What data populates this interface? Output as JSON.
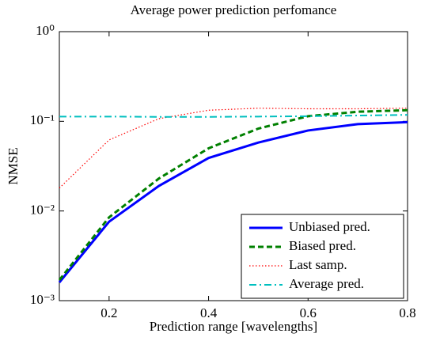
{
  "chart_data": {
    "type": "line",
    "title": "Average power prediction perfomance",
    "xlabel": "Prediction range [wavelengths]",
    "ylabel": "NMSE",
    "x": [
      0.1,
      0.2,
      0.3,
      0.4,
      0.5,
      0.6,
      0.7,
      0.8
    ],
    "xlim": [
      0.1,
      0.8
    ],
    "xticks": [
      0.2,
      0.4,
      0.6,
      0.8
    ],
    "ylim": [
      0.001,
      1
    ],
    "yticks": [
      {
        "value": 0.001,
        "label": "10⁻³"
      },
      {
        "value": 0.01,
        "label": "10⁻²"
      },
      {
        "value": 0.1,
        "label": "10⁻¹"
      },
      {
        "value": 1,
        "label": "10⁰"
      }
    ],
    "log_y": true,
    "grid": false,
    "legend": "lower right",
    "series": [
      {
        "name": "Unbiased pred.",
        "color": "#0000ff",
        "style": "solid",
        "values": [
          0.0016,
          0.0076,
          0.019,
          0.039,
          0.058,
          0.079,
          0.093,
          0.098
        ]
      },
      {
        "name": "Biased pred.",
        "color": "#008000",
        "style": "dashed",
        "values": [
          0.0017,
          0.0085,
          0.023,
          0.05,
          0.083,
          0.114,
          0.128,
          0.133
        ]
      },
      {
        "name": "Last samp.",
        "color": "#ff0000",
        "style": "dotted",
        "values": [
          0.018,
          0.062,
          0.107,
          0.133,
          0.14,
          0.138,
          0.138,
          0.14
        ]
      },
      {
        "name": "Average pred.",
        "color": "#00bfbf",
        "style": "dashdot",
        "values": [
          0.113,
          0.113,
          0.112,
          0.112,
          0.113,
          0.114,
          0.116,
          0.118
        ]
      }
    ]
  }
}
